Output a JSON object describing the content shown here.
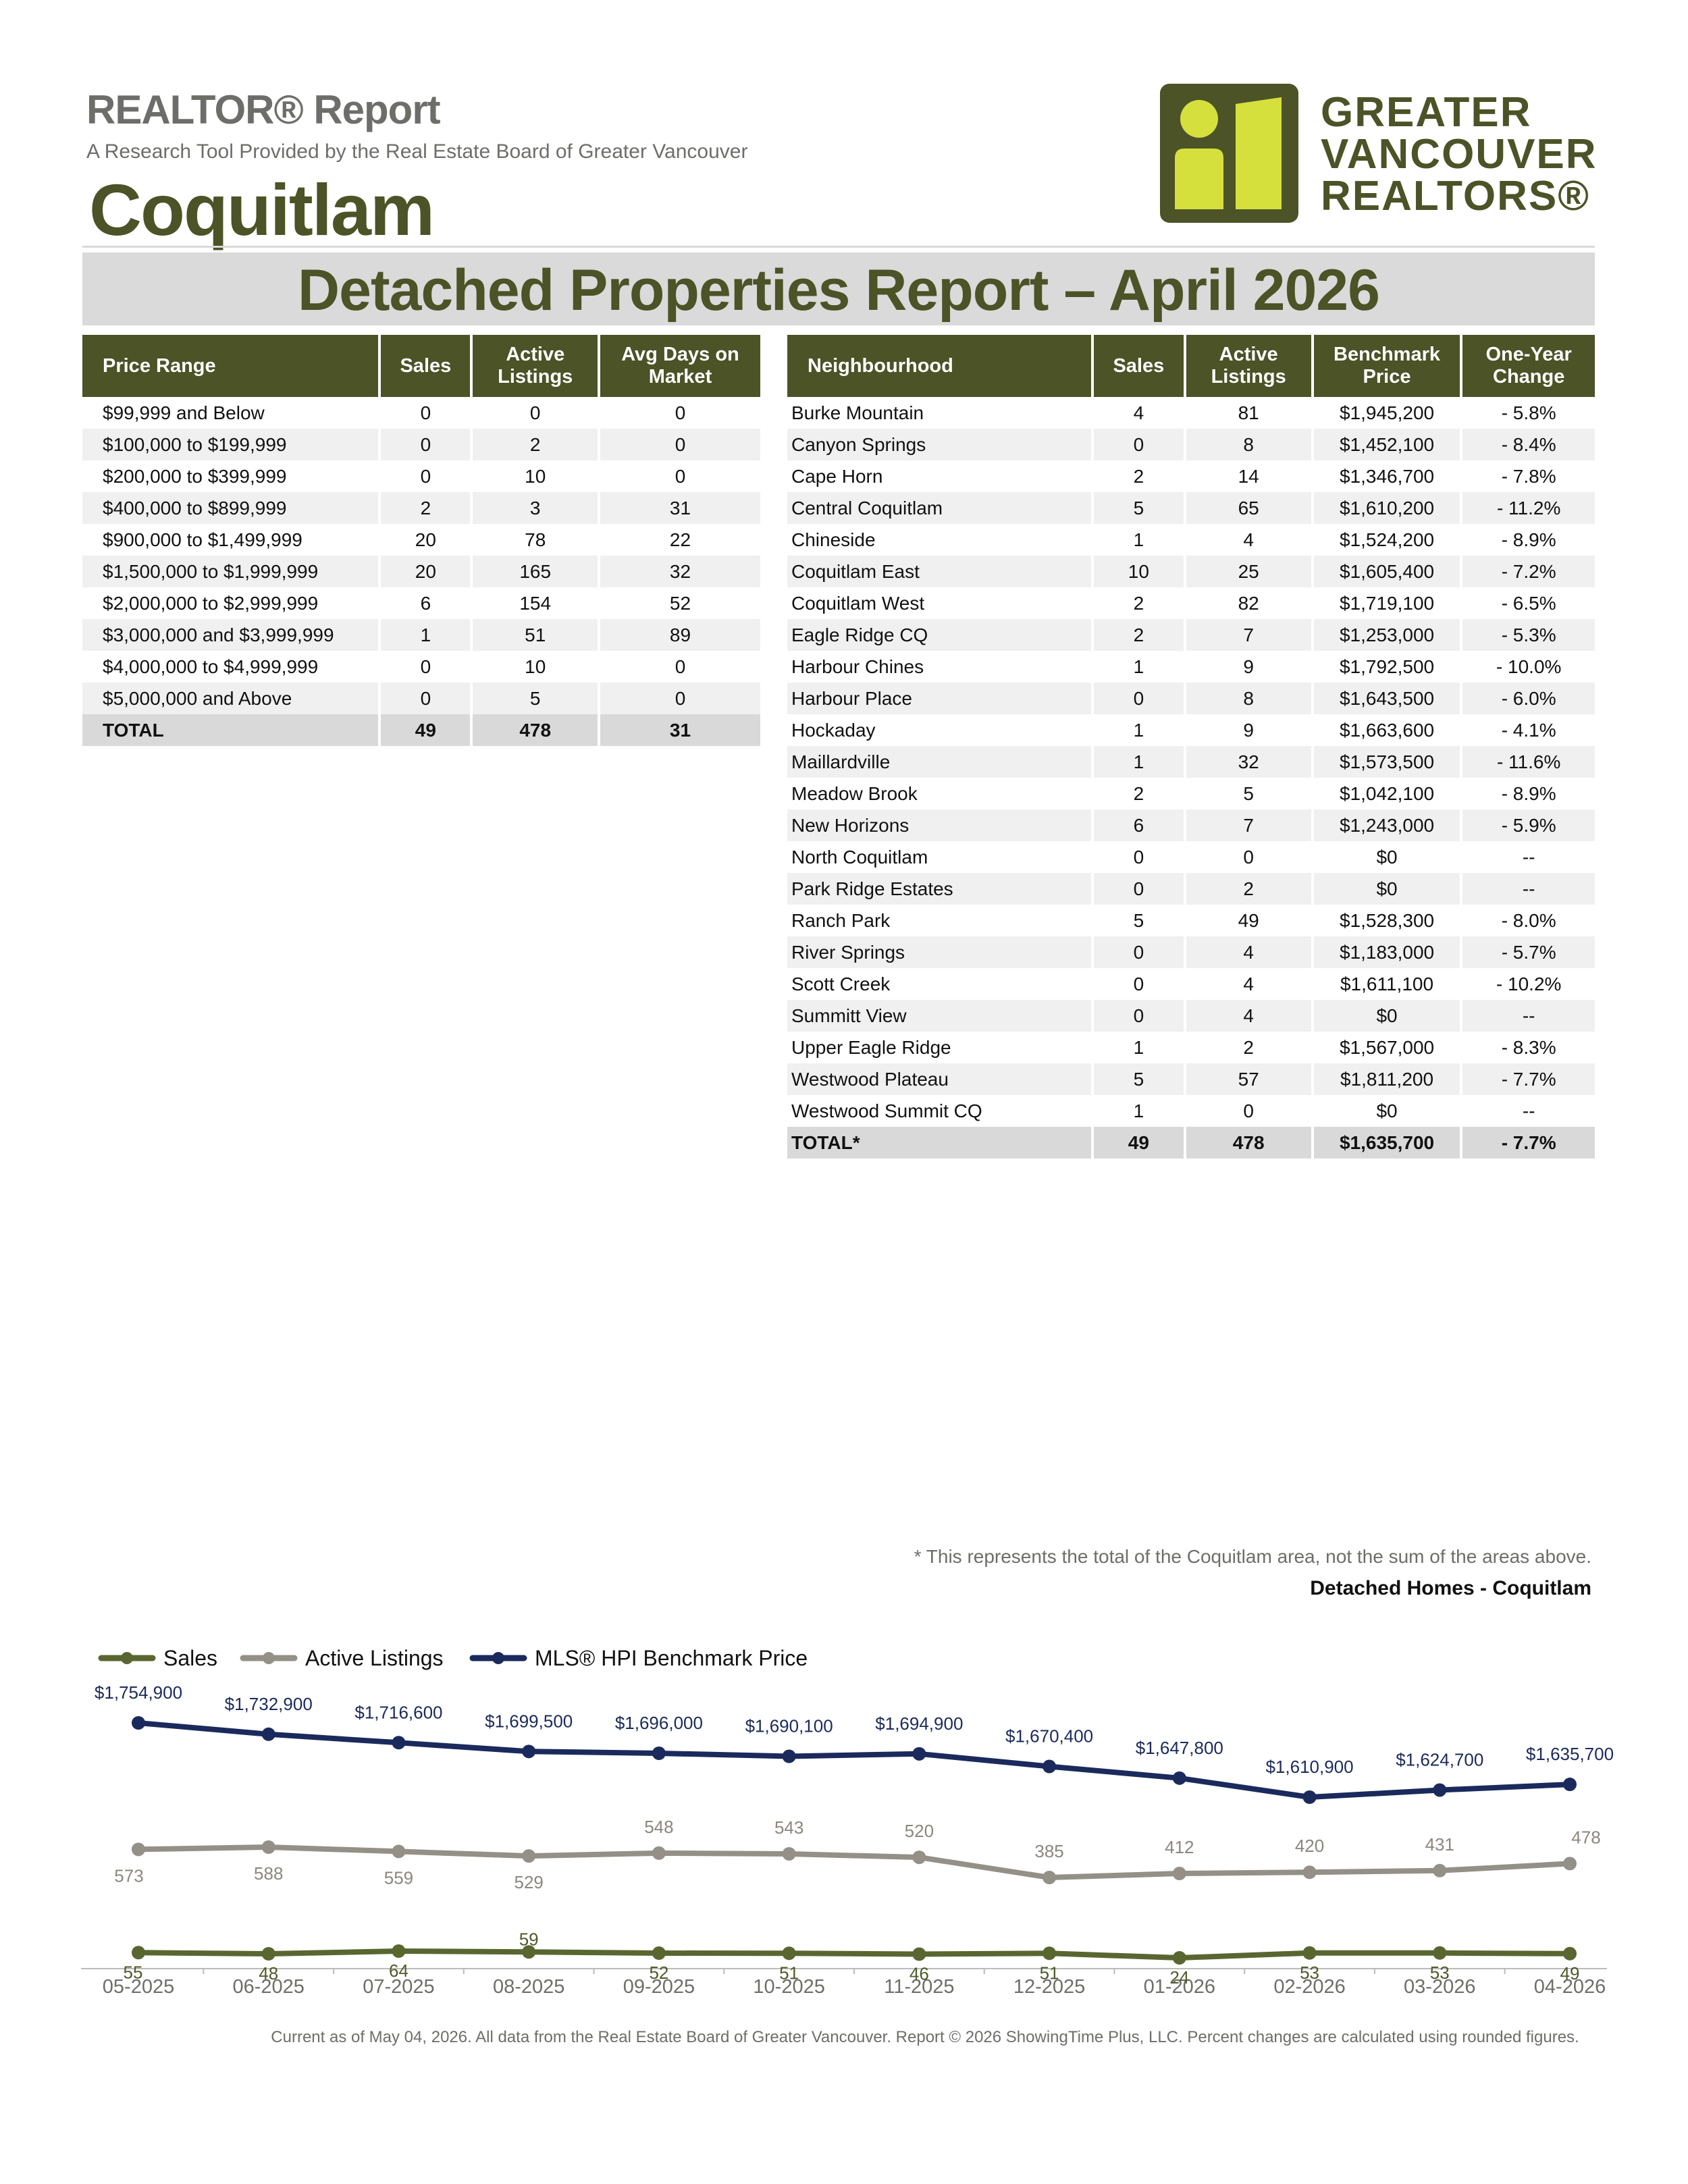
{
  "header": {
    "title": "REALTOR® Report",
    "subtitle": "A Research Tool Provided by the Real Estate Board of Greater Vancouver",
    "city": "Coquitlam",
    "banner": "Detached Properties Report – April 2026"
  },
  "logo": {
    "line1": "GREATER",
    "line2": "VANCOUVER",
    "line3": "REALTORS®",
    "color": "#4b5327",
    "accent": "#d6e03d"
  },
  "price_table": {
    "headers": [
      "Price Range",
      "Sales",
      "Active Listings",
      "Avg Days on Market"
    ],
    "rows": [
      {
        "range": "$99,999 and Below",
        "sales": "0",
        "active": "0",
        "dom": "0"
      },
      {
        "range": "$100,000 to $199,999",
        "sales": "0",
        "active": "2",
        "dom": "0"
      },
      {
        "range": "$200,000 to $399,999",
        "sales": "0",
        "active": "10",
        "dom": "0"
      },
      {
        "range": "$400,000 to $899,999",
        "sales": "2",
        "active": "3",
        "dom": "31"
      },
      {
        "range": "$900,000 to $1,499,999",
        "sales": "20",
        "active": "78",
        "dom": "22"
      },
      {
        "range": "$1,500,000 to $1,999,999",
        "sales": "20",
        "active": "165",
        "dom": "32"
      },
      {
        "range": "$2,000,000 to $2,999,999",
        "sales": "6",
        "active": "154",
        "dom": "52"
      },
      {
        "range": "$3,000,000 and $3,999,999",
        "sales": "1",
        "active": "51",
        "dom": "89"
      },
      {
        "range": "$4,000,000 to $4,999,999",
        "sales": "0",
        "active": "10",
        "dom": "0"
      },
      {
        "range": "$5,000,000 and Above",
        "sales": "0",
        "active": "5",
        "dom": "0"
      }
    ],
    "total": {
      "range": "TOTAL",
      "sales": "49",
      "active": "478",
      "dom": "31"
    }
  },
  "neighbourhood_table": {
    "headers": [
      "Neighbourhood",
      "Sales",
      "Active Listings",
      "Benchmark Price",
      "One-Year Change"
    ],
    "rows": [
      {
        "name": "Burke Mountain",
        "sales": "4",
        "active": "81",
        "price": "$1,945,200",
        "change": "- 5.8%"
      },
      {
        "name": "Canyon Springs",
        "sales": "0",
        "active": "8",
        "price": "$1,452,100",
        "change": "- 8.4%"
      },
      {
        "name": "Cape Horn",
        "sales": "2",
        "active": "14",
        "price": "$1,346,700",
        "change": "- 7.8%"
      },
      {
        "name": "Central Coquitlam",
        "sales": "5",
        "active": "65",
        "price": "$1,610,200",
        "change": "- 11.2%"
      },
      {
        "name": "Chineside",
        "sales": "1",
        "active": "4",
        "price": "$1,524,200",
        "change": "- 8.9%"
      },
      {
        "name": "Coquitlam East",
        "sales": "10",
        "active": "25",
        "price": "$1,605,400",
        "change": "- 7.2%"
      },
      {
        "name": "Coquitlam West",
        "sales": "2",
        "active": "82",
        "price": "$1,719,100",
        "change": "- 6.5%"
      },
      {
        "name": "Eagle Ridge CQ",
        "sales": "2",
        "active": "7",
        "price": "$1,253,000",
        "change": "- 5.3%"
      },
      {
        "name": "Harbour Chines",
        "sales": "1",
        "active": "9",
        "price": "$1,792,500",
        "change": "- 10.0%"
      },
      {
        "name": "Harbour Place",
        "sales": "0",
        "active": "8",
        "price": "$1,643,500",
        "change": "- 6.0%"
      },
      {
        "name": "Hockaday",
        "sales": "1",
        "active": "9",
        "price": "$1,663,600",
        "change": "- 4.1%"
      },
      {
        "name": "Maillardville",
        "sales": "1",
        "active": "32",
        "price": "$1,573,500",
        "change": "- 11.6%"
      },
      {
        "name": "Meadow Brook",
        "sales": "2",
        "active": "5",
        "price": "$1,042,100",
        "change": "- 8.9%"
      },
      {
        "name": "New Horizons",
        "sales": "6",
        "active": "7",
        "price": "$1,243,000",
        "change": "- 5.9%"
      },
      {
        "name": "North Coquitlam",
        "sales": "0",
        "active": "0",
        "price": "$0",
        "change": "--"
      },
      {
        "name": "Park Ridge Estates",
        "sales": "0",
        "active": "2",
        "price": "$0",
        "change": "--"
      },
      {
        "name": "Ranch Park",
        "sales": "5",
        "active": "49",
        "price": "$1,528,300",
        "change": "- 8.0%"
      },
      {
        "name": "River Springs",
        "sales": "0",
        "active": "4",
        "price": "$1,183,000",
        "change": "- 5.7%"
      },
      {
        "name": "Scott Creek",
        "sales": "0",
        "active": "4",
        "price": "$1,611,100",
        "change": "- 10.2%"
      },
      {
        "name": "Summitt View",
        "sales": "0",
        "active": "4",
        "price": "$0",
        "change": "--"
      },
      {
        "name": "Upper Eagle Ridge",
        "sales": "1",
        "active": "2",
        "price": "$1,567,000",
        "change": "- 8.3%"
      },
      {
        "name": "Westwood Plateau",
        "sales": "5",
        "active": "57",
        "price": "$1,811,200",
        "change": "- 7.7%"
      },
      {
        "name": "Westwood Summit CQ",
        "sales": "1",
        "active": "0",
        "price": "$0",
        "change": "--"
      }
    ],
    "total": {
      "name": "TOTAL*",
      "sales": "49",
      "active": "478",
      "price": "$1,635,700",
      "change": "- 7.7%"
    }
  },
  "footnote": "* This represents the total of the Coquitlam area, not the sum of the areas above.",
  "chart_title": "Detached Homes - Coquitlam",
  "chart_data": {
    "type": "line",
    "categories": [
      "05-2025",
      "06-2025",
      "07-2025",
      "08-2025",
      "09-2025",
      "10-2025",
      "11-2025",
      "12-2025",
      "01-2026",
      "02-2026",
      "03-2026",
      "04-2026"
    ],
    "series": [
      {
        "name": "Sales",
        "color": "#5a6630",
        "values": [
          55,
          48,
          64,
          59,
          52,
          51,
          46,
          51,
          24,
          53,
          53,
          49
        ]
      },
      {
        "name": "Active Listings",
        "color": "#949087",
        "values": [
          573,
          588,
          559,
          529,
          548,
          543,
          520,
          385,
          412,
          420,
          431,
          478
        ]
      },
      {
        "name": "MLS® HPI Benchmark Price",
        "color": "#1b2a5c",
        "values": [
          1754900,
          1732900,
          1716600,
          1699500,
          1696000,
          1690100,
          1694900,
          1670400,
          1647800,
          1610900,
          1624700,
          1635700
        ],
        "labels": [
          "$1,754,900",
          "$1,732,900",
          "$1,716,600",
          "$1,699,500",
          "$1,696,000",
          "$1,690,100",
          "$1,694,900",
          "$1,670,400",
          "$1,647,800",
          "$1,610,900",
          "$1,624,700",
          "$1,635,700"
        ]
      }
    ],
    "legend": "top-left"
  },
  "footer": "Current as of May 04, 2026. All data from the Real Estate Board of Greater Vancouver.  Report © 2026 ShowingTime Plus, LLC. Percent changes are calculated using rounded figures."
}
